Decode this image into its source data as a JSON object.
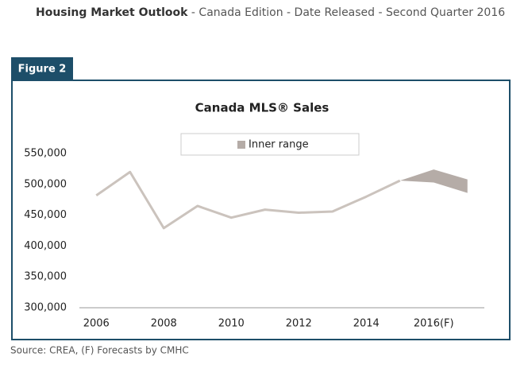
{
  "header": {
    "title": "Housing Market Outlook",
    "subtitle": " - Canada Edition - Date Released - Second Quarter 2016"
  },
  "figure_label": "Figure 2",
  "source": "Source: CREA, (F) Forecasts by CMHC",
  "chart_data": {
    "type": "line",
    "title": "Canada MLS® Sales",
    "x": [
      2006,
      2007,
      2008,
      2009,
      2010,
      2011,
      2012,
      2013,
      2014,
      2015,
      2016,
      2017
    ],
    "series": [
      {
        "color": "#cbc3bd",
        "values": [
          482000,
          520000,
          429000,
          465000,
          446000,
          459000,
          454000,
          456000,
          480000,
          506000,
          null,
          null
        ]
      }
    ],
    "range": {
      "name": "Inner range",
      "color": "#b5aca7",
      "low": [
        null,
        null,
        null,
        null,
        null,
        null,
        null,
        null,
        null,
        506000,
        503000,
        486000
      ],
      "high": [
        null,
        null,
        null,
        null,
        null,
        null,
        null,
        null,
        null,
        506000,
        524000,
        508000
      ]
    },
    "xlim": [
      2005.5,
      2017.5
    ],
    "xticks": [
      2006,
      2008,
      2010,
      2012,
      2014,
      {
        "value": 2016,
        "label": "2016(F)"
      }
    ],
    "ylim": [
      300000,
      550000
    ],
    "yticks": [
      {
        "value": 300000,
        "label": "300,000"
      },
      {
        "value": 350000,
        "label": "350,000"
      },
      {
        "value": 400000,
        "label": "400,000"
      },
      {
        "value": 450000,
        "label": "450,000"
      },
      {
        "value": 500000,
        "label": "500,000"
      },
      {
        "value": 550000,
        "label": "550,000"
      }
    ],
    "legend": "top"
  }
}
